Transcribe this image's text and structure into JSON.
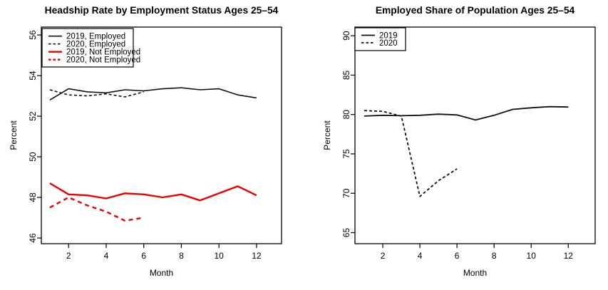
{
  "figure": {
    "background": "#ffffff",
    "description": "Two side-by-side monthly line charts, R base-graphics style"
  },
  "colors": {
    "black": "#111111",
    "red": "#ee0000",
    "axis": "#000000",
    "legend_border": "#000000"
  },
  "chart_data": [
    {
      "type": "line",
      "title": "Headship Rate by Employment Status Ages 25–54",
      "xlabel": "Month",
      "ylabel": "Percent",
      "xlim": [
        0.55,
        13.33
      ],
      "ylim": [
        45.72,
        56.39
      ],
      "xticks": [
        2,
        4,
        6,
        8,
        10,
        12
      ],
      "yticks": [
        46,
        48,
        50,
        52,
        54,
        56
      ],
      "grid": false,
      "legend_position": "top-left",
      "legend_labels": [
        "2019, Employed",
        "2020, Employed",
        "2019, Not Employed",
        "2020, Not Employed"
      ],
      "series": [
        {
          "name": "2019, Employed",
          "color": "black",
          "style": "solid",
          "x": [
            1,
            2,
            3,
            4,
            5,
            6,
            7,
            8,
            9,
            10,
            11,
            12
          ],
          "values": [
            52.8,
            53.35,
            53.2,
            53.15,
            53.3,
            53.25,
            53.35,
            53.4,
            53.3,
            53.35,
            53.05,
            52.9
          ]
        },
        {
          "name": "2020, Employed",
          "color": "black",
          "style": "dashed",
          "x": [
            1,
            2,
            3,
            4,
            5,
            6
          ],
          "values": [
            53.3,
            53.05,
            53.0,
            53.1,
            52.95,
            53.2
          ]
        },
        {
          "name": "2019, Not Employed",
          "color": "red",
          "style": "solid",
          "x": [
            1,
            2,
            3,
            4,
            5,
            6,
            7,
            8,
            9,
            10,
            11,
            12
          ],
          "values": [
            48.7,
            48.15,
            48.1,
            47.95,
            48.2,
            48.15,
            48.0,
            48.15,
            47.85,
            48.2,
            48.55,
            48.1
          ]
        },
        {
          "name": "2020, Not Employed",
          "color": "red",
          "style": "dashed",
          "x": [
            1,
            2,
            3,
            4,
            5,
            6
          ],
          "values": [
            47.5,
            48.0,
            47.6,
            47.3,
            46.85,
            47.0
          ]
        }
      ]
    },
    {
      "type": "line",
      "title": "Employed Share of Population Ages 25–54",
      "xlabel": "Month",
      "ylabel": "Percent",
      "xlim": [
        0.5,
        13.45
      ],
      "ylim": [
        63.6,
        91.1
      ],
      "xticks": [
        2,
        4,
        6,
        8,
        10,
        12
      ],
      "yticks": [
        65,
        70,
        75,
        80,
        85,
        90
      ],
      "grid": false,
      "legend_position": "top-left",
      "legend_labels": [
        "2019",
        "2020"
      ],
      "series": [
        {
          "name": "2019",
          "color": "black",
          "style": "solid",
          "x": [
            1,
            2,
            3,
            4,
            5,
            6,
            7,
            8,
            9,
            10,
            11,
            12
          ],
          "values": [
            79.8,
            79.9,
            79.85,
            79.9,
            80.05,
            79.95,
            79.3,
            79.9,
            80.65,
            80.85,
            81.0,
            80.95
          ]
        },
        {
          "name": "2020",
          "color": "black",
          "style": "dashed",
          "x": [
            1,
            2,
            3,
            4,
            5,
            6
          ],
          "values": [
            80.5,
            80.4,
            79.8,
            69.6,
            71.6,
            73.1
          ]
        }
      ]
    }
  ]
}
